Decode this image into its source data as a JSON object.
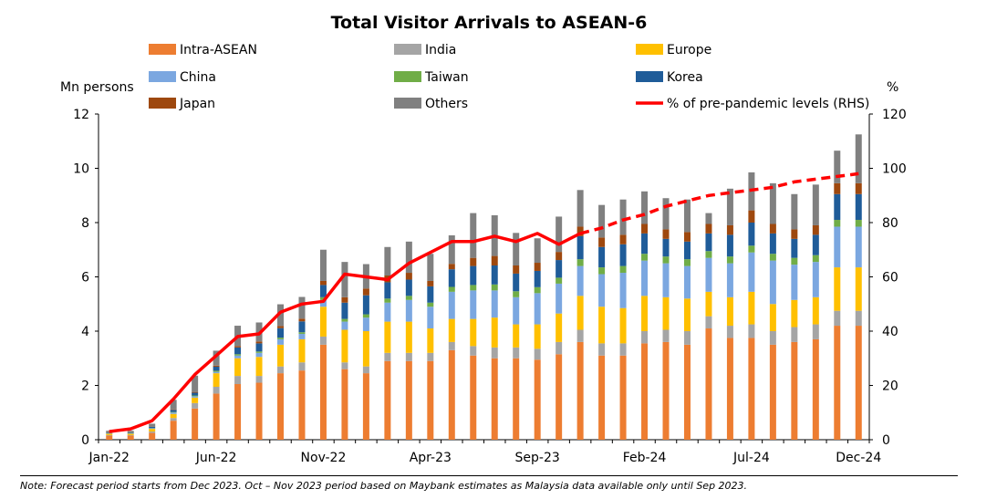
{
  "chart_data": {
    "type": "bar",
    "subtype": "stacked-bar-with-line",
    "title": "Total Visitor Arrivals to ASEAN-6",
    "ylabel_left": "Mn persons",
    "ylabel_right": "%",
    "ylim_left": [
      0,
      12
    ],
    "ylim_right": [
      0,
      120
    ],
    "yticks_left": [
      "0",
      "2",
      "4",
      "6",
      "8",
      "10",
      "12"
    ],
    "yticks_right": [
      "0",
      "20",
      "40",
      "60",
      "80",
      "100",
      "120"
    ],
    "xtick_labels": [
      "Jan-22",
      "Jun-22",
      "Nov-22",
      "Apr-23",
      "Sep-23",
      "Feb-24",
      "Jul-24",
      "Dec-24"
    ],
    "grid": false,
    "legend_placement": "top, three columns",
    "categories": [
      "Jan-22",
      "Feb-22",
      "Mar-22",
      "Apr-22",
      "May-22",
      "Jun-22",
      "Jul-22",
      "Aug-22",
      "Sep-22",
      "Oct-22",
      "Nov-22",
      "Dec-22",
      "Jan-23",
      "Feb-23",
      "Mar-23",
      "Apr-23",
      "May-23",
      "Jun-23",
      "Jul-23",
      "Aug-23",
      "Sep-23",
      "Oct-23",
      "Nov-23",
      "Dec-23",
      "Jan-24",
      "Feb-24",
      "Mar-24",
      "Apr-24",
      "May-24",
      "Jun-24",
      "Jul-24",
      "Aug-24",
      "Sep-24",
      "Oct-24",
      "Nov-24",
      "Dec-24"
    ],
    "series": [
      {
        "name": "Intra-ASEAN",
        "color": "#ED7D31",
        "values": [
          0.15,
          0.15,
          0.25,
          0.7,
          1.15,
          1.7,
          2.05,
          2.1,
          2.45,
          2.55,
          3.5,
          2.6,
          2.45,
          2.9,
          2.9,
          2.9,
          3.3,
          3.1,
          3.0,
          3.0,
          2.95,
          3.15,
          3.6,
          3.1,
          3.1,
          3.55,
          3.6,
          3.5,
          4.1,
          3.75,
          3.75,
          3.5,
          3.6,
          3.7,
          4.2,
          4.2
        ]
      },
      {
        "name": "India",
        "color": "#A5A5A5",
        "values": [
          0.02,
          0.02,
          0.05,
          0.1,
          0.2,
          0.25,
          0.3,
          0.25,
          0.25,
          0.3,
          0.3,
          0.25,
          0.25,
          0.3,
          0.3,
          0.3,
          0.3,
          0.35,
          0.4,
          0.4,
          0.4,
          0.45,
          0.45,
          0.45,
          0.45,
          0.45,
          0.45,
          0.5,
          0.45,
          0.45,
          0.5,
          0.5,
          0.55,
          0.55,
          0.55,
          0.55
        ]
      },
      {
        "name": "Europe",
        "color": "#FFC000",
        "values": [
          0.05,
          0.05,
          0.1,
          0.15,
          0.2,
          0.5,
          0.65,
          0.7,
          0.8,
          0.85,
          1.1,
          1.2,
          1.3,
          1.15,
          1.15,
          0.9,
          0.85,
          1.0,
          1.1,
          0.85,
          0.9,
          1.05,
          1.25,
          1.35,
          1.3,
          1.3,
          1.2,
          1.2,
          0.9,
          1.05,
          1.2,
          1.0,
          1.0,
          1.0,
          1.6,
          1.6
        ]
      },
      {
        "name": "China",
        "color": "#7BA7E0",
        "values": [
          0.02,
          0.02,
          0.02,
          0.05,
          0.05,
          0.05,
          0.1,
          0.15,
          0.2,
          0.2,
          0.25,
          0.3,
          0.5,
          0.7,
          0.8,
          0.8,
          1.0,
          1.05,
          1.0,
          1.0,
          1.15,
          1.1,
          1.1,
          1.2,
          1.3,
          1.3,
          1.25,
          1.2,
          1.25,
          1.25,
          1.45,
          1.6,
          1.3,
          1.3,
          1.5,
          1.5
        ]
      },
      {
        "name": "Taiwan",
        "color": "#70AD47",
        "values": [
          0.01,
          0.01,
          0.01,
          0.02,
          0.03,
          0.04,
          0.05,
          0.05,
          0.06,
          0.06,
          0.1,
          0.1,
          0.12,
          0.15,
          0.15,
          0.15,
          0.18,
          0.2,
          0.22,
          0.22,
          0.22,
          0.22,
          0.25,
          0.25,
          0.25,
          0.25,
          0.25,
          0.25,
          0.25,
          0.25,
          0.25,
          0.25,
          0.25,
          0.25,
          0.25,
          0.25
        ]
      },
      {
        "name": "Korea",
        "color": "#1F5C99",
        "values": [
          0.02,
          0.02,
          0.05,
          0.08,
          0.1,
          0.15,
          0.25,
          0.3,
          0.35,
          0.4,
          0.45,
          0.6,
          0.7,
          0.6,
          0.6,
          0.6,
          0.65,
          0.7,
          0.7,
          0.65,
          0.6,
          0.65,
          0.85,
          0.75,
          0.8,
          0.75,
          0.65,
          0.65,
          0.65,
          0.8,
          0.85,
          0.75,
          0.7,
          0.75,
          0.95,
          0.95
        ]
      },
      {
        "name": "Japan",
        "color": "#9E480E",
        "values": [
          0.01,
          0.01,
          0.01,
          0.02,
          0.03,
          0.04,
          0.05,
          0.07,
          0.08,
          0.1,
          0.15,
          0.2,
          0.25,
          0.25,
          0.25,
          0.2,
          0.2,
          0.3,
          0.35,
          0.3,
          0.3,
          0.3,
          0.35,
          0.35,
          0.35,
          0.35,
          0.35,
          0.35,
          0.35,
          0.35,
          0.45,
          0.35,
          0.35,
          0.35,
          0.4,
          0.4
        ]
      },
      {
        "name": "Others",
        "color": "#808080",
        "values": [
          0.05,
          0.05,
          0.1,
          0.35,
          0.6,
          0.55,
          0.75,
          0.7,
          0.8,
          0.8,
          1.15,
          1.3,
          0.9,
          1.05,
          1.15,
          1.0,
          1.05,
          1.65,
          1.5,
          1.2,
          0.9,
          1.3,
          1.35,
          1.2,
          1.3,
          1.2,
          1.15,
          1.2,
          0.4,
          1.35,
          1.4,
          1.5,
          1.3,
          1.5,
          1.2,
          1.8
        ]
      }
    ],
    "line": {
      "name": "% of pre-pandemic levels (RHS)",
      "color": "#FF0000",
      "axis": "right",
      "values": [
        3,
        4,
        7,
        15,
        24,
        31,
        38,
        39,
        47,
        50,
        51,
        61,
        60,
        59,
        65,
        69,
        73,
        73,
        75,
        73,
        76,
        72,
        76,
        78,
        81,
        83,
        86,
        88,
        90,
        91,
        92,
        93,
        95,
        96,
        97,
        98
      ],
      "forecast_from_index": 22,
      "forecast_style": "dashed"
    }
  },
  "note": "Note: Forecast period starts from Dec 2023. Oct – Nov 2023 period based on Maybank estimates as Malaysia data available only until Sep 2023."
}
